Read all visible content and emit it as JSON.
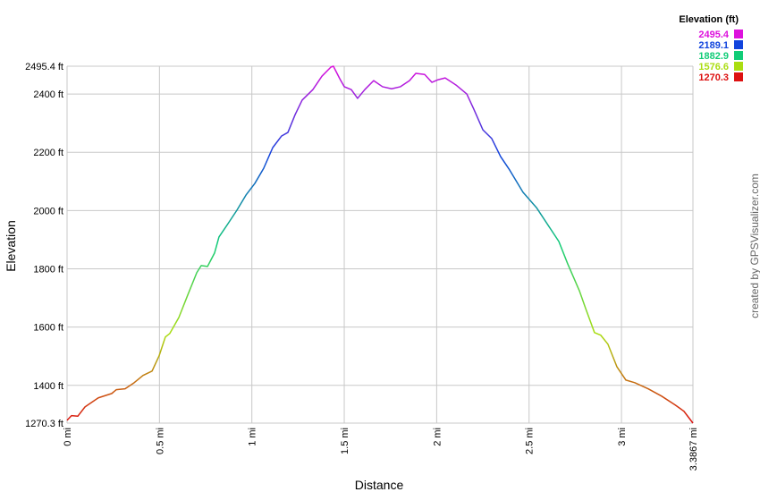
{
  "chart_data": {
    "type": "line",
    "x_label": "Distance",
    "y_label": "Elevation",
    "credit": "created by GPSVisualizer.com",
    "grid": true,
    "x": [
      0,
      0.024,
      0.058,
      0.097,
      0.169,
      0.242,
      0.266,
      0.314,
      0.363,
      0.411,
      0.46,
      0.498,
      0.532,
      0.556,
      0.605,
      0.653,
      0.702,
      0.726,
      0.76,
      0.798,
      0.822,
      0.871,
      0.919,
      0.968,
      1.016,
      1.064,
      1.113,
      1.161,
      1.195,
      1.234,
      1.272,
      1.33,
      1.379,
      1.427,
      1.441,
      1.476,
      1.5,
      1.538,
      1.572,
      1.611,
      1.659,
      1.707,
      1.756,
      1.804,
      1.853,
      1.887,
      1.935,
      1.974,
      2.008,
      2.046,
      2.104,
      2.163,
      2.201,
      2.25,
      2.298,
      2.346,
      2.395,
      2.467,
      2.54,
      2.613,
      2.661,
      2.709,
      2.772,
      2.806,
      2.854,
      2.888,
      2.927,
      2.975,
      3.024,
      3.072,
      3.145,
      3.217,
      3.29,
      3.338,
      3.3867
    ],
    "values": [
      1280,
      1296,
      1294,
      1326,
      1357,
      1372,
      1385,
      1388,
      1409,
      1434,
      1449,
      1501,
      1566,
      1578,
      1633,
      1710,
      1787,
      1811,
      1808,
      1854,
      1909,
      1955,
      2001,
      2053,
      2093,
      2145,
      2216,
      2256,
      2268,
      2329,
      2379,
      2415,
      2461,
      2492,
      2495.4,
      2452,
      2425,
      2415,
      2385,
      2415,
      2446,
      2425,
      2418,
      2425,
      2446,
      2471,
      2467,
      2440,
      2449,
      2455,
      2431,
      2400,
      2348,
      2277,
      2247,
      2185,
      2139,
      2063,
      2010,
      1940,
      1894,
      1817,
      1725,
      1664,
      1581,
      1572,
      1541,
      1464,
      1418,
      1409,
      1388,
      1363,
      1333,
      1311,
      1270.3
    ],
    "xlim": [
      0,
      3.3867
    ],
    "ylim": [
      1270.3,
      2495.4
    ],
    "xticks": [
      {
        "value": 0,
        "label": "0 mi"
      },
      {
        "value": 0.5,
        "label": "0.5 mi"
      },
      {
        "value": 1,
        "label": "1 mi"
      },
      {
        "value": 1.5,
        "label": "1.5 mi"
      },
      {
        "value": 2,
        "label": "2 mi"
      },
      {
        "value": 2.5,
        "label": "2.5 mi"
      },
      {
        "value": 3,
        "label": "3 mi"
      },
      {
        "value": 3.3867,
        "label": "3.3867 mi"
      }
    ],
    "yticks": [
      {
        "value": 1270.3,
        "label": "1270.3 ft"
      },
      {
        "value": 1400,
        "label": "1400 ft"
      },
      {
        "value": 1600,
        "label": "1600 ft"
      },
      {
        "value": 1800,
        "label": "1800 ft"
      },
      {
        "value": 2000,
        "label": "2000 ft"
      },
      {
        "value": 2200,
        "label": "2200 ft"
      },
      {
        "value": 2400,
        "label": "2400 ft"
      },
      {
        "value": 2495.4,
        "label": "2495.4 ft"
      }
    ],
    "legend": {
      "title": "Elevation (ft)",
      "items": [
        {
          "value": 2495.4,
          "color": "#dd11dd"
        },
        {
          "value": 2189.1,
          "color": "#1144dd"
        },
        {
          "value": 1882.9,
          "color": "#11cc77"
        },
        {
          "value": 1576.6,
          "color": "#aadd11"
        },
        {
          "value": 1270.3,
          "color": "#dd1111"
        }
      ]
    }
  }
}
